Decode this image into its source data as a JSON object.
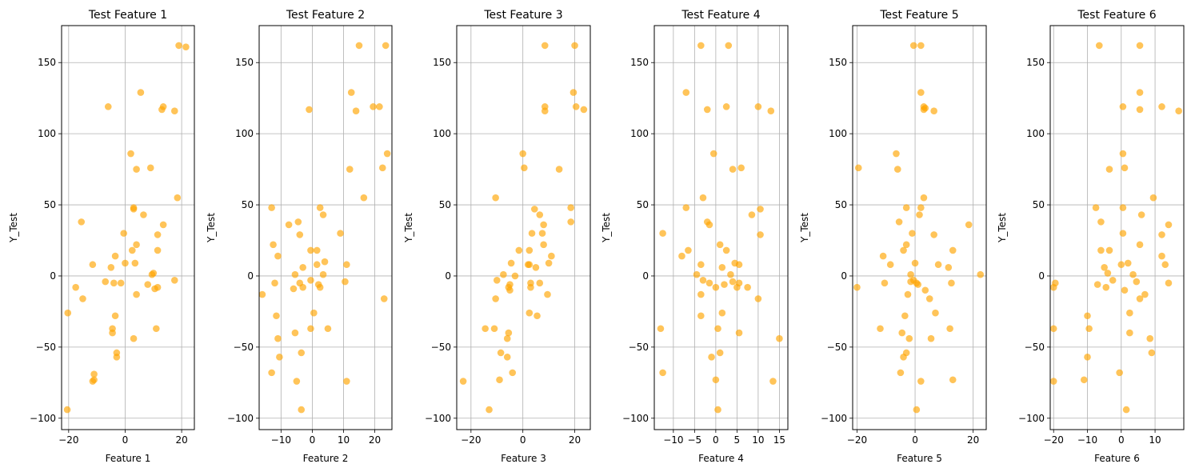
{
  "chart_data": [
    {
      "type": "scatter",
      "title": "Test Feature 1",
      "xlabel": "Feature 1",
      "ylabel": "Y_Test",
      "xlim": [
        -22.5,
        24.5
      ],
      "ylim": [
        -108,
        176
      ],
      "xticks": [
        -20,
        0,
        20
      ],
      "yticks": [
        -100,
        -50,
        0,
        50,
        100,
        150
      ],
      "grid": true,
      "color": "#FFA500",
      "points": [
        [
          -20.5,
          -94
        ],
        [
          -20.3,
          -26
        ],
        [
          -17.5,
          -8
        ],
        [
          -15.5,
          38
        ],
        [
          -15,
          -16
        ],
        [
          -11.5,
          8
        ],
        [
          -11,
          -69
        ],
        [
          -11,
          -73
        ],
        [
          -11.5,
          -74
        ],
        [
          -7,
          -4
        ],
        [
          -6,
          119
        ],
        [
          -5,
          6
        ],
        [
          -4.5,
          -40
        ],
        [
          -4.5,
          -37
        ],
        [
          -4,
          -5
        ],
        [
          -3.5,
          14
        ],
        [
          -3.5,
          -28
        ],
        [
          -3,
          -54
        ],
        [
          -3,
          -57
        ],
        [
          -1.5,
          -5
        ],
        [
          -0.5,
          30
        ],
        [
          0,
          9
        ],
        [
          2,
          86
        ],
        [
          2.5,
          18
        ],
        [
          3,
          -44
        ],
        [
          3,
          47
        ],
        [
          3,
          48
        ],
        [
          3.5,
          9
        ],
        [
          4,
          22
        ],
        [
          4,
          -13
        ],
        [
          4,
          75
        ],
        [
          5.5,
          129
        ],
        [
          6.5,
          43
        ],
        [
          8,
          -6
        ],
        [
          9,
          76
        ],
        [
          9.5,
          1
        ],
        [
          10,
          2
        ],
        [
          10.5,
          -9
        ],
        [
          11,
          -37
        ],
        [
          11.5,
          -8
        ],
        [
          11.5,
          18
        ],
        [
          11.5,
          29
        ],
        [
          13,
          117
        ],
        [
          13.5,
          36
        ],
        [
          13.5,
          119
        ],
        [
          17.5,
          -3
        ],
        [
          17.5,
          116
        ],
        [
          18.5,
          55
        ],
        [
          19,
          162
        ],
        [
          21.5,
          161
        ]
      ]
    },
    {
      "type": "scatter",
      "title": "Test Feature 2",
      "xlabel": "Feature 2",
      "ylabel": "Y_Test",
      "xlim": [
        -17,
        25.5
      ],
      "ylim": [
        -108,
        176
      ],
      "xticks": [
        -10,
        0,
        10,
        20
      ],
      "yticks": [
        -100,
        -50,
        0,
        50,
        100,
        150
      ],
      "grid": true,
      "color": "#FFA500",
      "points": [
        [
          -16,
          -13
        ],
        [
          -13,
          48
        ],
        [
          -13,
          -68
        ],
        [
          -12.5,
          22
        ],
        [
          -12,
          -5
        ],
        [
          -11.5,
          -28
        ],
        [
          -11,
          14
        ],
        [
          -11,
          -44
        ],
        [
          -10.5,
          -57
        ],
        [
          -7.5,
          36
        ],
        [
          -6,
          -9
        ],
        [
          -5.5,
          -40
        ],
        [
          -5.5,
          1
        ],
        [
          -5,
          -74
        ],
        [
          -4.5,
          38
        ],
        [
          -4,
          29
        ],
        [
          -4,
          -5
        ],
        [
          -3.5,
          -54
        ],
        [
          -3.5,
          -94
        ],
        [
          -3,
          -8
        ],
        [
          -3,
          6
        ],
        [
          -1,
          117
        ],
        [
          -0.5,
          18
        ],
        [
          -0.5,
          -37
        ],
        [
          -0.5,
          -3
        ],
        [
          0.5,
          -26
        ],
        [
          1.5,
          18
        ],
        [
          1.5,
          8
        ],
        [
          2,
          -6
        ],
        [
          2.5,
          48
        ],
        [
          2.5,
          -8
        ],
        [
          3.5,
          43
        ],
        [
          3.5,
          1
        ],
        [
          4,
          10
        ],
        [
          5,
          -37
        ],
        [
          9,
          30
        ],
        [
          10.5,
          -4
        ],
        [
          11,
          8
        ],
        [
          11,
          -74
        ],
        [
          12,
          75
        ],
        [
          12.5,
          129
        ],
        [
          14,
          116
        ],
        [
          15,
          162
        ],
        [
          16.5,
          55
        ],
        [
          19.5,
          119
        ],
        [
          21.5,
          119
        ],
        [
          22.5,
          76
        ],
        [
          23,
          -16
        ],
        [
          23.5,
          162
        ],
        [
          24,
          86
        ]
      ]
    },
    {
      "type": "scatter",
      "title": "Test Feature 3",
      "xlabel": "Feature 3",
      "ylabel": "Y_Test",
      "xlim": [
        -25.5,
        26
      ],
      "ylim": [
        -108,
        176
      ],
      "xticks": [
        -20,
        0,
        20
      ],
      "yticks": [
        -100,
        -50,
        0,
        50,
        100,
        150
      ],
      "grid": true,
      "color": "#FFA500",
      "points": [
        [
          -23,
          -74
        ],
        [
          -14.5,
          -37
        ],
        [
          -13,
          -94
        ],
        [
          -11,
          -37
        ],
        [
          -10.5,
          55
        ],
        [
          -10.5,
          -16
        ],
        [
          -10,
          -3
        ],
        [
          -9,
          -73
        ],
        [
          -8.5,
          -54
        ],
        [
          -7.5,
          1
        ],
        [
          -6,
          -57
        ],
        [
          -6,
          -44
        ],
        [
          -5.5,
          -40
        ],
        [
          -5.5,
          -8
        ],
        [
          -5,
          -6
        ],
        [
          -5,
          -10
        ],
        [
          -4.5,
          9
        ],
        [
          -4,
          -68
        ],
        [
          -3,
          0
        ],
        [
          -1.5,
          18
        ],
        [
          0,
          86
        ],
        [
          0.5,
          76
        ],
        [
          2,
          8
        ],
        [
          2.5,
          18
        ],
        [
          2.5,
          -26
        ],
        [
          2.5,
          8
        ],
        [
          3,
          -5
        ],
        [
          3,
          -8
        ],
        [
          3.5,
          30
        ],
        [
          4.5,
          47
        ],
        [
          5,
          6
        ],
        [
          5.5,
          -28
        ],
        [
          6.5,
          -5
        ],
        [
          6.5,
          43
        ],
        [
          7.5,
          30
        ],
        [
          8,
          36
        ],
        [
          8,
          22
        ],
        [
          8.5,
          116
        ],
        [
          8.5,
          119
        ],
        [
          8.5,
          162
        ],
        [
          9.5,
          -13
        ],
        [
          10,
          9
        ],
        [
          11,
          14
        ],
        [
          14,
          75
        ],
        [
          18.5,
          48
        ],
        [
          18.5,
          38
        ],
        [
          19.5,
          129
        ],
        [
          20,
          162
        ],
        [
          20.5,
          119
        ],
        [
          23.5,
          117
        ]
      ]
    },
    {
      "type": "scatter",
      "title": "Test Feature 4",
      "xlabel": "Feature 4",
      "ylabel": "Y_Test",
      "xlim": [
        -14.5,
        17
      ],
      "ylim": [
        -108,
        176
      ],
      "xticks": [
        -10,
        -5,
        0,
        5,
        10,
        15
      ],
      "yticks": [
        -100,
        -50,
        0,
        50,
        100,
        150
      ],
      "grid": true,
      "color": "#FFA500",
      "points": [
        [
          -13,
          -37
        ],
        [
          -12.5,
          30
        ],
        [
          -12.5,
          -68
        ],
        [
          -8,
          14
        ],
        [
          -7,
          129
        ],
        [
          -7,
          48
        ],
        [
          -6.5,
          18
        ],
        [
          -4.5,
          1
        ],
        [
          -3.5,
          162
        ],
        [
          -3.5,
          -28
        ],
        [
          -3.5,
          8
        ],
        [
          -3.5,
          -13
        ],
        [
          -3,
          55
        ],
        [
          -3,
          -3
        ],
        [
          -2,
          117
        ],
        [
          -2,
          38
        ],
        [
          -1.5,
          36
        ],
        [
          -1.5,
          -5
        ],
        [
          -1,
          -57
        ],
        [
          -0.5,
          86
        ],
        [
          0,
          -8
        ],
        [
          0,
          -73
        ],
        [
          0.5,
          -37
        ],
        [
          0.5,
          -94
        ],
        [
          1,
          -54
        ],
        [
          1,
          22
        ],
        [
          1.5,
          6
        ],
        [
          1.5,
          -26
        ],
        [
          2,
          -6
        ],
        [
          2.5,
          119
        ],
        [
          2.5,
          18
        ],
        [
          3,
          162
        ],
        [
          3.5,
          1
        ],
        [
          4,
          75
        ],
        [
          4,
          -4
        ],
        [
          4.5,
          9
        ],
        [
          5,
          -8
        ],
        [
          5.5,
          8
        ],
        [
          5.5,
          -40
        ],
        [
          5.5,
          -5
        ],
        [
          6,
          76
        ],
        [
          7.5,
          -8
        ],
        [
          8.5,
          43
        ],
        [
          10,
          119
        ],
        [
          10,
          -16
        ],
        [
          10.5,
          29
        ],
        [
          10.5,
          47
        ],
        [
          13,
          116
        ],
        [
          13.5,
          -74
        ],
        [
          15,
          -44
        ]
      ]
    },
    {
      "type": "scatter",
      "title": "Test Feature 5",
      "xlabel": "Feature 5",
      "ylabel": "Y_Test",
      "xlim": [
        -21.5,
        24.5
      ],
      "ylim": [
        -108,
        176
      ],
      "xticks": [
        -20,
        0,
        20
      ],
      "yticks": [
        -100,
        -50,
        0,
        50,
        100,
        150
      ],
      "grid": true,
      "color": "#FFA500",
      "points": [
        [
          -20,
          -8
        ],
        [
          -19.5,
          76
        ],
        [
          -12,
          -37
        ],
        [
          -11,
          14
        ],
        [
          -10.5,
          -5
        ],
        [
          -8.5,
          8
        ],
        [
          -6.5,
          86
        ],
        [
          -6,
          75
        ],
        [
          -5.5,
          38
        ],
        [
          -5,
          -68
        ],
        [
          -4.5,
          -40
        ],
        [
          -4,
          -57
        ],
        [
          -4,
          18
        ],
        [
          -3.5,
          -28
        ],
        [
          -3,
          -54
        ],
        [
          -3,
          22
        ],
        [
          -3,
          48
        ],
        [
          -2.5,
          -13
        ],
        [
          -2,
          -44
        ],
        [
          -1.5,
          1
        ],
        [
          -1.5,
          -4
        ],
        [
          -1,
          30
        ],
        [
          -0.5,
          162
        ],
        [
          -0.5,
          -3
        ],
        [
          0,
          9
        ],
        [
          0.5,
          -5
        ],
        [
          0.5,
          -94
        ],
        [
          1,
          -6
        ],
        [
          1.5,
          43
        ],
        [
          2,
          48
        ],
        [
          2,
          162
        ],
        [
          2,
          129
        ],
        [
          2,
          -74
        ],
        [
          3,
          119
        ],
        [
          3,
          117
        ],
        [
          3,
          55
        ],
        [
          3.5,
          118
        ],
        [
          3.5,
          -10
        ],
        [
          5,
          -16
        ],
        [
          5.5,
          -44
        ],
        [
          6.5,
          116
        ],
        [
          6.5,
          29
        ],
        [
          7,
          -26
        ],
        [
          8,
          8
        ],
        [
          11.5,
          6
        ],
        [
          12,
          -37
        ],
        [
          12.5,
          -5
        ],
        [
          13,
          18
        ],
        [
          13,
          -73
        ],
        [
          18.5,
          36
        ],
        [
          22.5,
          1
        ]
      ]
    },
    {
      "type": "scatter",
      "title": "Test Feature 6",
      "xlabel": "Feature 6",
      "ylabel": "Y_Test",
      "xlim": [
        -21,
        18.5
      ],
      "ylim": [
        -108,
        176
      ],
      "xticks": [
        -20,
        -10,
        0,
        10
      ],
      "yticks": [
        -100,
        -50,
        0,
        50,
        100,
        150
      ],
      "grid": true,
      "color": "#FFA500",
      "points": [
        [
          -20,
          -37
        ],
        [
          -20,
          -8
        ],
        [
          -20,
          -74
        ],
        [
          -19.5,
          -5
        ],
        [
          -11,
          -73
        ],
        [
          -10,
          -57
        ],
        [
          -10,
          -28
        ],
        [
          -9.5,
          -37
        ],
        [
          -7.5,
          48
        ],
        [
          -7,
          -6
        ],
        [
          -6.5,
          162
        ],
        [
          -6,
          38
        ],
        [
          -6,
          18
        ],
        [
          -5,
          6
        ],
        [
          -4.5,
          -8
        ],
        [
          -4,
          2
        ],
        [
          -3.5,
          18
        ],
        [
          -3.5,
          75
        ],
        [
          -2.5,
          -3
        ],
        [
          -0.5,
          -68
        ],
        [
          0,
          8
        ],
        [
          0.5,
          119
        ],
        [
          0.5,
          86
        ],
        [
          0.5,
          48
        ],
        [
          0.5,
          30
        ],
        [
          1,
          76
        ],
        [
          1,
          -10
        ],
        [
          1.5,
          -94
        ],
        [
          2,
          9
        ],
        [
          2.5,
          -26
        ],
        [
          2.5,
          -40
        ],
        [
          3.5,
          1
        ],
        [
          4.5,
          -4
        ],
        [
          5.5,
          162
        ],
        [
          5.5,
          129
        ],
        [
          5.5,
          117
        ],
        [
          5.5,
          22
        ],
        [
          5.5,
          -16
        ],
        [
          6,
          43
        ],
        [
          7,
          -13
        ],
        [
          8.5,
          -44
        ],
        [
          9,
          -54
        ],
        [
          9.5,
          55
        ],
        [
          12,
          119
        ],
        [
          12,
          29
        ],
        [
          12,
          14
        ],
        [
          13,
          8
        ],
        [
          14,
          36
        ],
        [
          14,
          -5
        ],
        [
          17,
          116
        ]
      ]
    }
  ]
}
